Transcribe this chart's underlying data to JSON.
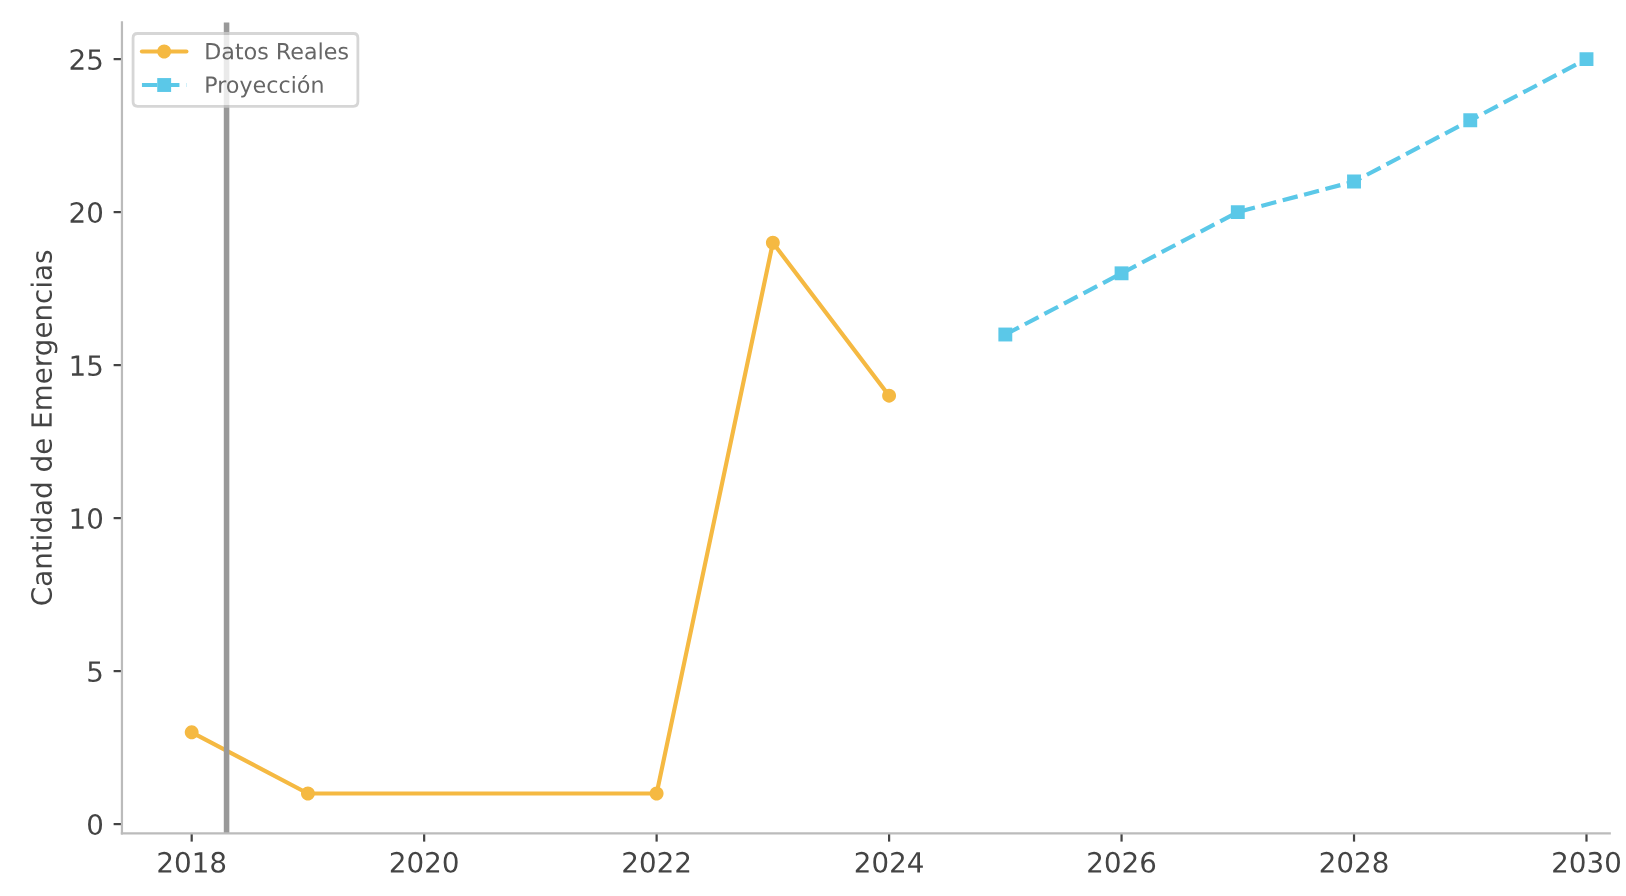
{
  "chart_data": {
    "type": "line",
    "ylabel": "Cantidad de Emergencias",
    "series": [
      {
        "name": "Datos Reales",
        "color": "#f5b942",
        "x": [
          2018,
          2019,
          2022,
          2023,
          2024
        ],
        "values": [
          3,
          1,
          1,
          19,
          14
        ],
        "marker": "circle",
        "line_style": "solid"
      },
      {
        "name": "Proyección",
        "color": "#5bc8e8",
        "x": [
          2025,
          2026,
          2027,
          2028,
          2029,
          2030
        ],
        "values": [
          16,
          18,
          20,
          21,
          23,
          25
        ],
        "marker": "square",
        "line_style": "dashed"
      }
    ],
    "xlim": [
      2017.4,
      2030.2
    ],
    "xticks": [
      2018,
      2020,
      2022,
      2024,
      2026,
      2028,
      2030
    ],
    "ylim": [
      -0.3,
      26.2
    ],
    "yticks": [
      0,
      5,
      10,
      15,
      20,
      25
    ],
    "ref_lines": [
      {
        "axis": "x",
        "value": 2018.3,
        "color": "#999999"
      }
    ],
    "legend": "top left",
    "grid": false
  }
}
